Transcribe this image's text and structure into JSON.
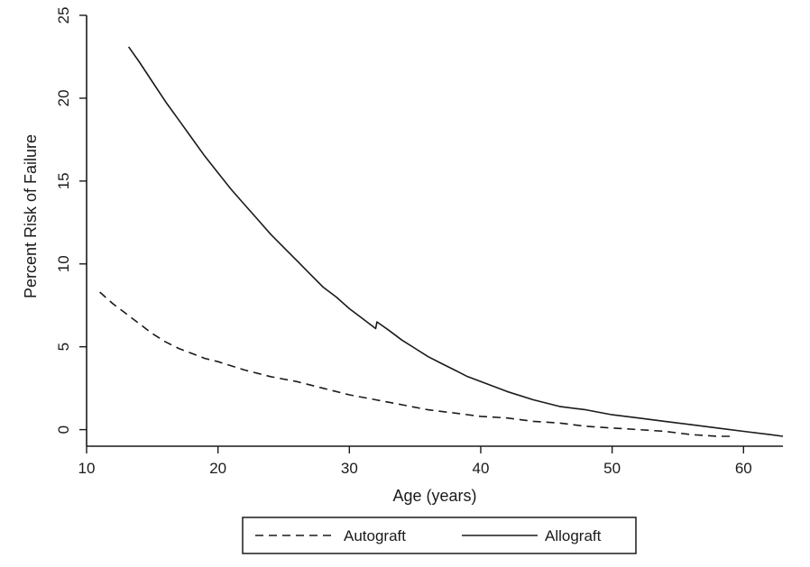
{
  "chart_data": {
    "type": "line",
    "title": "",
    "xlabel": "Age (years)",
    "ylabel": "Percent Risk of Failure",
    "xlim": [
      10,
      63
    ],
    "ylim": [
      -1,
      25
    ],
    "xticks": [
      10,
      20,
      30,
      40,
      50,
      60
    ],
    "yticks": [
      0,
      5,
      10,
      15,
      20,
      25
    ],
    "grid": false,
    "legend_position": "bottom-center",
    "series": [
      {
        "name": "Autograft",
        "line_style": "dashed",
        "color": "#1a1a1a",
        "points": [
          [
            11,
            8.3
          ],
          [
            12,
            7.6
          ],
          [
            13,
            7.0
          ],
          [
            14,
            6.4
          ],
          [
            15,
            5.8
          ],
          [
            16,
            5.3
          ],
          [
            17,
            4.9
          ],
          [
            18,
            4.6
          ],
          [
            19,
            4.3
          ],
          [
            20,
            4.1
          ],
          [
            22,
            3.6
          ],
          [
            24,
            3.2
          ],
          [
            26,
            2.9
          ],
          [
            28,
            2.5
          ],
          [
            30,
            2.1
          ],
          [
            32,
            1.8
          ],
          [
            34,
            1.5
          ],
          [
            36,
            1.2
          ],
          [
            38,
            1.0
          ],
          [
            40,
            0.8
          ],
          [
            42,
            0.7
          ],
          [
            44,
            0.5
          ],
          [
            46,
            0.4
          ],
          [
            48,
            0.2
          ],
          [
            50,
            0.1
          ],
          [
            52,
            0.0
          ],
          [
            54,
            -0.1
          ],
          [
            56,
            -0.3
          ],
          [
            58,
            -0.4
          ],
          [
            59,
            -0.4
          ]
        ]
      },
      {
        "name": "Allograft",
        "line_style": "solid",
        "color": "#1a1a1a",
        "points": [
          [
            13.2,
            23.1
          ],
          [
            14,
            22.2
          ],
          [
            15,
            21.0
          ],
          [
            16,
            19.8
          ],
          [
            17,
            18.7
          ],
          [
            18,
            17.6
          ],
          [
            19,
            16.5
          ],
          [
            20,
            15.5
          ],
          [
            21,
            14.5
          ],
          [
            22,
            13.6
          ],
          [
            23,
            12.7
          ],
          [
            24,
            11.8
          ],
          [
            25,
            11.0
          ],
          [
            26,
            10.2
          ],
          [
            27,
            9.4
          ],
          [
            28,
            8.6
          ],
          [
            29,
            8.0
          ],
          [
            30,
            7.3
          ],
          [
            31,
            6.7
          ],
          [
            32,
            6.1
          ],
          [
            32.1,
            6.5
          ],
          [
            33,
            6.0
          ],
          [
            34,
            5.4
          ],
          [
            35,
            4.9
          ],
          [
            36,
            4.4
          ],
          [
            37,
            4.0
          ],
          [
            38,
            3.6
          ],
          [
            39,
            3.2
          ],
          [
            40,
            2.9
          ],
          [
            42,
            2.3
          ],
          [
            44,
            1.8
          ],
          [
            46,
            1.4
          ],
          [
            48,
            1.2
          ],
          [
            50,
            0.9
          ],
          [
            52,
            0.7
          ],
          [
            54,
            0.5
          ],
          [
            56,
            0.3
          ],
          [
            58,
            0.1
          ],
          [
            60,
            -0.1
          ],
          [
            62,
            -0.3
          ],
          [
            63,
            -0.4
          ]
        ]
      }
    ]
  }
}
